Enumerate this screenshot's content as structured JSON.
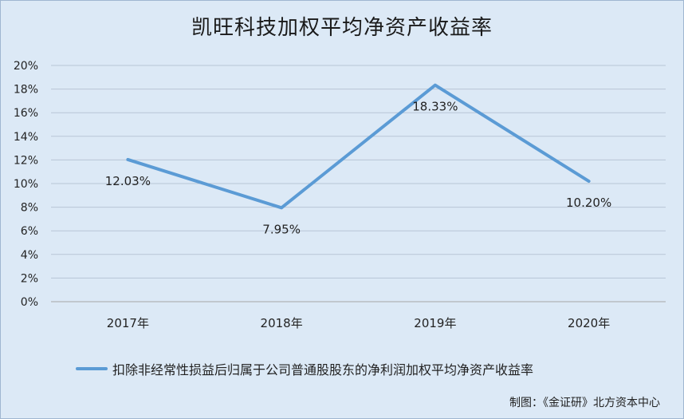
{
  "chart_data": {
    "type": "line",
    "title": "凯旺科技加权平均净资产收益率",
    "categories": [
      "2017年",
      "2018年",
      "2019年",
      "2020年"
    ],
    "series": [
      {
        "name": "扣除非经常性损益后归属于公司普通股股东的净利润加权平均净资产收益率",
        "values": [
          12.03,
          7.95,
          18.33,
          10.2
        ],
        "labels": [
          "12.03%",
          "7.95%",
          "18.33%",
          "10.20%"
        ],
        "color": "#5b9bd5"
      }
    ],
    "yticks": [
      "0%",
      "2%",
      "4%",
      "6%",
      "8%",
      "10%",
      "12%",
      "14%",
      "16%",
      "18%",
      "20%"
    ],
    "ylim": [
      0,
      20
    ],
    "grid": true,
    "legend": "bottom"
  },
  "credit": "制图：《金证研》北方资本中心"
}
